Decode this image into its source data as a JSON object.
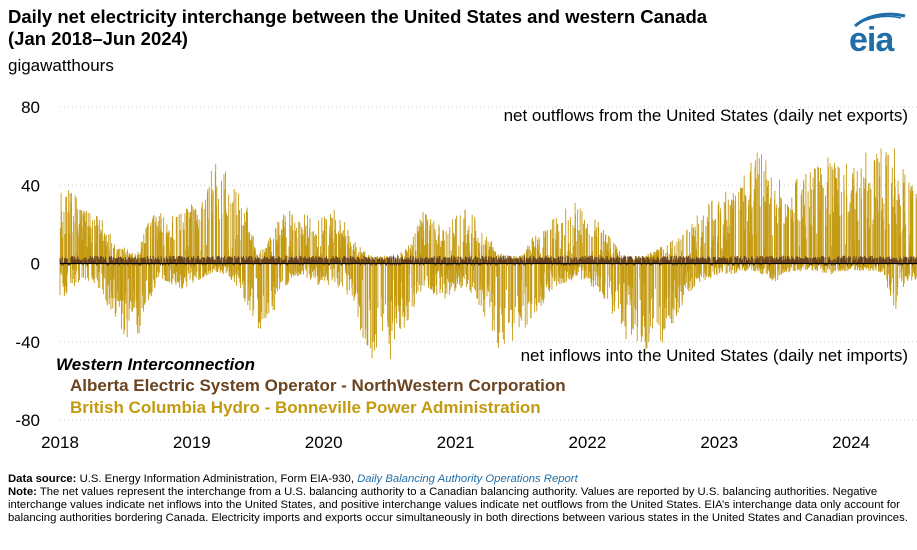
{
  "header": {
    "title_line1": "Daily net electricity interchange between the United States and western Canada",
    "title_line2": "(Jan 2018–Jun 2024)",
    "unit": "gigawatthours",
    "logo_text": "eia"
  },
  "chart_data": {
    "type": "bar",
    "title": "Daily net electricity interchange between the United States and western Canada (Jan 2018–Jun 2024)",
    "ylabel": "gigawatthours",
    "xlabel": "",
    "ylim": [
      -80,
      80
    ],
    "xlim": [
      2018.0,
      2024.5
    ],
    "yticks": [
      80,
      40,
      0,
      -40,
      -80
    ],
    "ytick_labels": [
      "80",
      "40",
      "0",
      "-40",
      "-80"
    ],
    "xticks": [
      2018,
      2019,
      2020,
      2021,
      2022,
      2023,
      2024
    ],
    "xtick_labels": [
      "2018",
      "2019",
      "2020",
      "2021",
      "2022",
      "2023",
      "2024"
    ],
    "grid": true,
    "legend_title": "Western Interconnection",
    "annotations": {
      "top": "net outflows from the United States (daily net exports)",
      "bottom": "net inflows into the United States (daily net imports)"
    },
    "series": [
      {
        "name": "British Columbia Hydro - Bonneville Power Administration",
        "color": "#c49a10",
        "x": [
          2018.0,
          2018.08,
          2018.17,
          2018.25,
          2018.33,
          2018.42,
          2018.5,
          2018.58,
          2018.67,
          2018.75,
          2018.83,
          2018.92,
          2019.0,
          2019.08,
          2019.17,
          2019.25,
          2019.33,
          2019.42,
          2019.5,
          2019.58,
          2019.67,
          2019.75,
          2019.83,
          2019.92,
          2020.0,
          2020.08,
          2020.17,
          2020.25,
          2020.33,
          2020.42,
          2020.5,
          2020.58,
          2020.67,
          2020.75,
          2020.83,
          2020.92,
          2021.0,
          2021.08,
          2021.17,
          2021.25,
          2021.33,
          2021.42,
          2021.5,
          2021.58,
          2021.67,
          2021.75,
          2021.83,
          2021.92,
          2022.0,
          2022.08,
          2022.17,
          2022.25,
          2022.33,
          2022.42,
          2022.5,
          2022.58,
          2022.67,
          2022.75,
          2022.83,
          2022.92,
          2023.0,
          2023.08,
          2023.17,
          2023.25,
          2023.33,
          2023.42,
          2023.5,
          2023.58,
          2023.67,
          2023.75,
          2023.83,
          2023.92,
          2024.0,
          2024.08,
          2024.17,
          2024.25,
          2024.33,
          2024.42,
          2024.5
        ],
        "high": [
          44,
          38,
          30,
          26,
          22,
          10,
          8,
          5,
          22,
          28,
          26,
          30,
          32,
          36,
          52,
          48,
          40,
          30,
          5,
          12,
          24,
          28,
          28,
          22,
          24,
          30,
          20,
          10,
          5,
          4,
          4,
          6,
          12,
          28,
          22,
          20,
          24,
          30,
          22,
          14,
          6,
          4,
          4,
          14,
          18,
          24,
          28,
          32,
          26,
          22,
          14,
          6,
          4,
          4,
          6,
          10,
          14,
          22,
          26,
          34,
          32,
          40,
          44,
          56,
          58,
          50,
          38,
          44,
          48,
          50,
          56,
          54,
          50,
          58,
          60,
          62,
          60,
          44,
          36
        ],
        "low": [
          -20,
          -14,
          -8,
          -10,
          -18,
          -30,
          -38,
          -40,
          -22,
          -8,
          -10,
          -14,
          -10,
          -8,
          -4,
          -6,
          -10,
          -22,
          -34,
          -32,
          -18,
          -8,
          -6,
          -10,
          -12,
          -10,
          -18,
          -30,
          -46,
          -52,
          -50,
          -40,
          -26,
          -12,
          -16,
          -18,
          -14,
          -12,
          -20,
          -32,
          -44,
          -44,
          -40,
          -28,
          -20,
          -12,
          -10,
          -8,
          -10,
          -14,
          -24,
          -36,
          -42,
          -44,
          -44,
          -40,
          -30,
          -16,
          -12,
          -8,
          -6,
          -6,
          -4,
          -4,
          -6,
          -10,
          -6,
          -4,
          -4,
          -4,
          -6,
          -4,
          -4,
          -4,
          -4,
          -6,
          -26,
          -10,
          -8
        ]
      },
      {
        "name": "Alberta Electric System Operator - NorthWestern Corporation",
        "color": "#6b4420",
        "x": [
          2018.0,
          2018.5,
          2019.0,
          2019.5,
          2020.0,
          2020.5,
          2021.0,
          2021.5,
          2022.0,
          2022.5,
          2023.0,
          2023.5,
          2024.0,
          2024.5
        ],
        "high": [
          4,
          4,
          4,
          4,
          4,
          4,
          4,
          4,
          4,
          4,
          4,
          4,
          4,
          4
        ],
        "low": [
          -1,
          -1,
          -1,
          -1,
          -1,
          -1,
          -1,
          -1,
          -1,
          -1,
          -1,
          -1,
          -1,
          -1
        ]
      }
    ]
  },
  "footer": {
    "source_label": "Data source:",
    "source_text": "U.S. Energy Information Administration, Form EIA-930,",
    "source_link": "Daily Balancing Authority Operations Report",
    "note_label": "Note:",
    "note_text": "The net values represent the interchange from a U.S. balancing authority to a Canadian balancing authority. Values are reported by U.S. balancing authorities. Negative interchange values indicate net inflows into the United States, and positive interchange values indicate net outflows from the United States. EIA’s interchange data only account for balancing authorities bordering Canada. Electricity imports and exports occur simultaneously in both directions between various states in the United States and Canadian provinces."
  }
}
